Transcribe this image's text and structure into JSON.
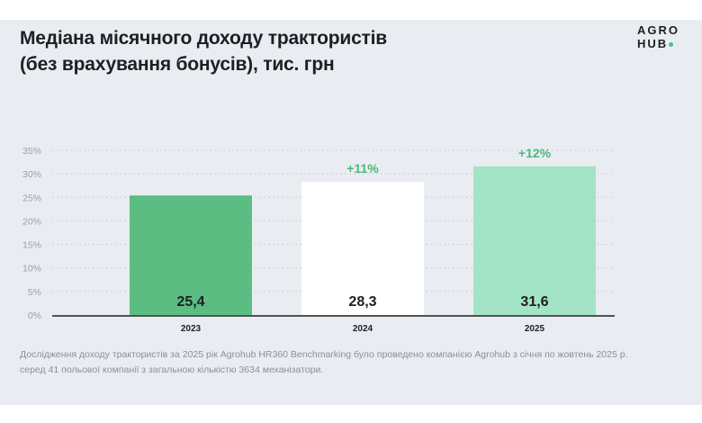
{
  "header": {
    "title_line1": "Медіана місячного доходу трактористів",
    "title_line2": "(без врахування бонусів), тис. грн",
    "logo_line1": "AGRO",
    "logo_line2": "HUB"
  },
  "footnote": {
    "line1": "Дослідження доходу трактористів за 2025 рік Agrohub HR360 Benchmarking було проведено компанією Agrohub з січня по жовтень 2025 р.",
    "line2": "серед 41 польової компанії з загальною кількістю 3634 механізатори."
  },
  "chart_data": {
    "type": "bar",
    "title": "Медіана місячного доходу трактористів (без врахування бонусів), тис. грн",
    "categories": [
      "2023",
      "2024",
      "2025"
    ],
    "values": [
      25.4,
      28.3,
      31.6
    ],
    "value_labels": [
      "25,4",
      "28,3",
      "31,6"
    ],
    "growth_labels": [
      "",
      "+11%",
      "+12%"
    ],
    "y_ticks": [
      "0%",
      "5%",
      "10%",
      "15%",
      "20%",
      "25%",
      "30%",
      "35%"
    ],
    "ylim": [
      0,
      35
    ],
    "grid": true,
    "colors": [
      "#5cbd82",
      "#ffffff",
      "#a4e4c6"
    ],
    "growth_color": "#4cb878"
  }
}
